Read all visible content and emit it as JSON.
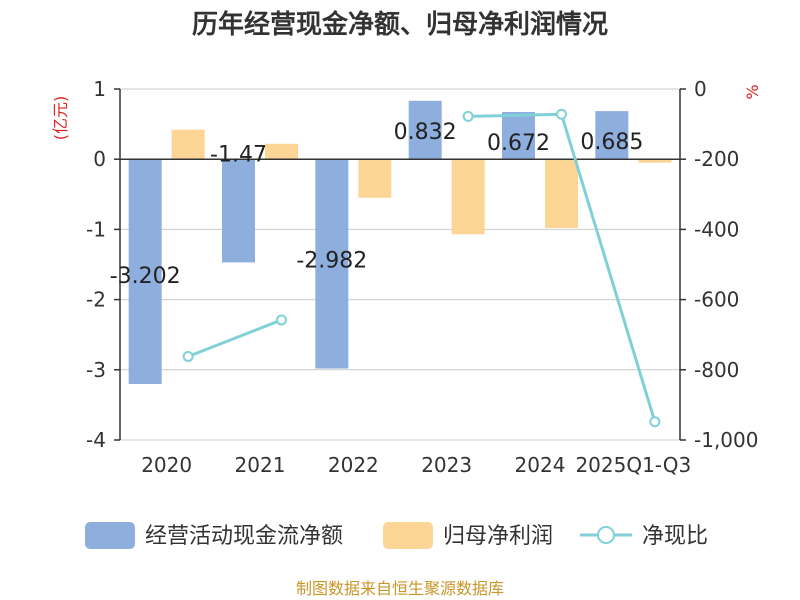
{
  "chart_data": {
    "type": "bar",
    "title": "历年经营现金净额、归母净利润情况",
    "categories": [
      "2020",
      "2021",
      "2022",
      "2023",
      "2024",
      "2025Q1-Q3"
    ],
    "left_axis": {
      "unit": "(亿元)",
      "ylim": [
        -4,
        1
      ],
      "ticks": [
        "1",
        "0",
        "-1",
        "-2",
        "-3",
        "-4"
      ]
    },
    "right_axis": {
      "unit": "%",
      "ylim": [
        -1000,
        0
      ],
      "ticks": [
        "0",
        "-200",
        "-400",
        "-600",
        "-800",
        "-1,000"
      ]
    },
    "series": [
      {
        "name": "经营活动现金流净额",
        "type": "bar",
        "axis": "left",
        "color": "#8eaedd",
        "values": [
          -3.202,
          -1.47,
          -2.982,
          0.832,
          0.672,
          0.685
        ],
        "labels": [
          "-3.202",
          "-1.47",
          "-2.982",
          "0.832",
          "0.672",
          "0.685"
        ]
      },
      {
        "name": "归母净利润",
        "type": "bar",
        "axis": "left",
        "color": "#fdd696",
        "values": [
          0.42,
          0.22,
          -0.55,
          -1.07,
          -0.98,
          -0.05
        ]
      },
      {
        "name": "净现比",
        "type": "line",
        "axis": "right",
        "color": "#80d0d8",
        "values": [
          -762,
          -658,
          null,
          -78,
          -72,
          -948
        ]
      }
    ],
    "source": "制图数据来自恒生聚源数据库"
  }
}
